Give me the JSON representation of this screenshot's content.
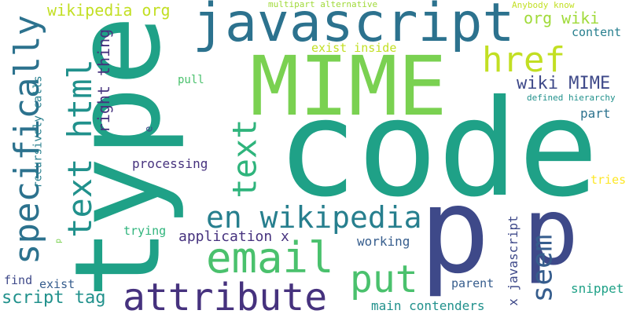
{
  "colors": {
    "background": "#ffffff",
    "lime": "#a0da39",
    "yellow_green": "#c2df23",
    "yellow": "#fde725",
    "green": "#7ad151",
    "light_green": "#4ac16d",
    "medium_green": "#2fb47c",
    "teal_green": "#1fa187",
    "teal": "#21918c",
    "dark_teal": "#277f8e",
    "blue_teal": "#2c728e",
    "blue": "#365d8d",
    "indigo": "#3e4989",
    "purple": "#46327e",
    "dark_purple": "#440154"
  },
  "words": [
    {
      "id": "type",
      "text": "type"
    },
    {
      "id": "code",
      "text": "code"
    },
    {
      "id": "mime",
      "text": "MIME"
    },
    {
      "id": "javascript",
      "text": "javascript"
    },
    {
      "id": "p-large",
      "text": "p"
    },
    {
      "id": "p-medium",
      "text": "p"
    },
    {
      "id": "text-html",
      "text": "text html"
    },
    {
      "id": "specifically",
      "text": "specifically"
    },
    {
      "id": "email",
      "text": "email"
    },
    {
      "id": "attribute",
      "text": "attribute"
    },
    {
      "id": "en-wikipedia",
      "text": "en wikipedia"
    },
    {
      "id": "href",
      "text": "href"
    },
    {
      "id": "text",
      "text": "text"
    },
    {
      "id": "put",
      "text": "put"
    },
    {
      "id": "seem",
      "text": "seem"
    },
    {
      "id": "wikipedia-org",
      "text": "wikipedia org"
    },
    {
      "id": "wiki-mime",
      "text": "wiki MIME"
    },
    {
      "id": "right-thing",
      "text": "right thing"
    },
    {
      "id": "org-wiki",
      "text": "org wiki"
    },
    {
      "id": "script-tag",
      "text": "script tag"
    },
    {
      "id": "main-contenders",
      "text": "main contenders"
    },
    {
      "id": "x-javascript",
      "text": "x javascript"
    },
    {
      "id": "application-x",
      "text": "application x"
    },
    {
      "id": "processing",
      "text": "processing"
    },
    {
      "id": "recursively-calls",
      "text": "recursively calls"
    },
    {
      "id": "exist-inside",
      "text": "exist inside"
    },
    {
      "id": "content",
      "text": "content"
    },
    {
      "id": "part",
      "text": "part"
    },
    {
      "id": "tries",
      "text": "tries"
    },
    {
      "id": "trying",
      "text": "trying"
    },
    {
      "id": "working",
      "text": "working"
    },
    {
      "id": "parent",
      "text": "parent"
    },
    {
      "id": "snippet",
      "text": "snippet"
    },
    {
      "id": "exist",
      "text": "exist"
    },
    {
      "id": "find",
      "text": "find"
    },
    {
      "id": "pull",
      "text": "pull"
    },
    {
      "id": "multipart-alternative",
      "text": "multipart alternative"
    },
    {
      "id": "anybody-know",
      "text": "Anybody know"
    },
    {
      "id": "defined-hierarchy",
      "text": "defined hierarchy"
    },
    {
      "id": "e",
      "text": "e"
    },
    {
      "id": "p-tiny",
      "text": "p"
    }
  ]
}
